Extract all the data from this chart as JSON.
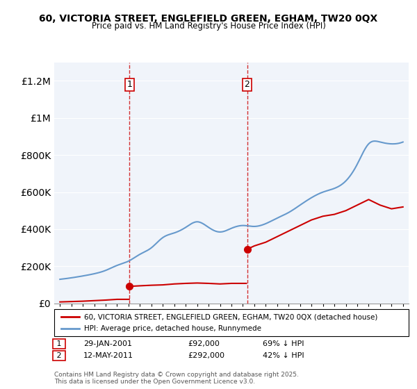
{
  "title": "60, VICTORIA STREET, ENGLEFIELD GREEN, EGHAM, TW20 0QX",
  "subtitle": "Price paid vs. HM Land Registry's House Price Index (HPI)",
  "legend_line1": "60, VICTORIA STREET, ENGLEFIELD GREEN, EGHAM, TW20 0QX (detached house)",
  "legend_line2": "HPI: Average price, detached house, Runnymede",
  "footnote": "Contains HM Land Registry data © Crown copyright and database right 2025.\nThis data is licensed under the Open Government Licence v3.0.",
  "sale1_label": "1",
  "sale1_date": "29-JAN-2001",
  "sale1_price": "£92,000",
  "sale1_hpi": "69% ↓ HPI",
  "sale2_label": "2",
  "sale2_date": "12-MAY-2011",
  "sale2_price": "£292,000",
  "sale2_hpi": "42% ↓ HPI",
  "sale1_year": 2001.08,
  "sale2_year": 2011.37,
  "sale1_price_val": 92000,
  "sale2_price_val": 292000,
  "vline_color": "#cc0000",
  "hpi_color": "#6699cc",
  "price_color": "#cc0000",
  "dot_color": "#cc0000",
  "background_color": "#f0f4fa",
  "ylim_max": 1300000,
  "ylabel_max": "£1.2M",
  "hpi_years": [
    1995,
    1996,
    1997,
    1998,
    1999,
    2000,
    2001,
    2002,
    2003,
    2004,
    2005,
    2006,
    2007,
    2008,
    2009,
    2010,
    2011,
    2012,
    2013,
    2014,
    2015,
    2016,
    2017,
    2018,
    2019,
    2020,
    2021,
    2022,
    2023,
    2024,
    2025
  ],
  "hpi_values": [
    130000,
    138000,
    148000,
    160000,
    178000,
    205000,
    228000,
    265000,
    300000,
    355000,
    380000,
    410000,
    440000,
    410000,
    385000,
    405000,
    420000,
    415000,
    430000,
    460000,
    490000,
    530000,
    570000,
    600000,
    620000,
    660000,
    750000,
    860000,
    870000,
    860000,
    870000
  ],
  "price_years": [
    1995,
    2001.08,
    2011.37,
    2025
  ],
  "price_values": [
    5000,
    92000,
    292000,
    520000
  ]
}
